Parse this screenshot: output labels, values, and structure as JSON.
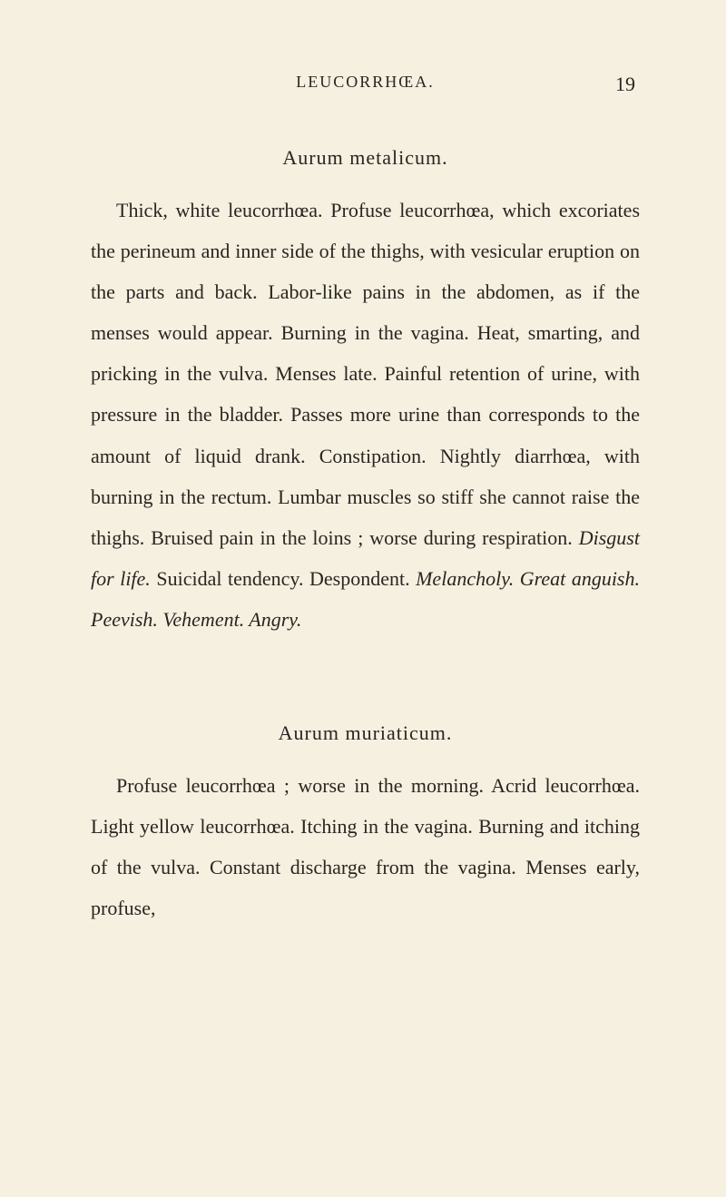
{
  "header": {
    "title": "LEUCORRHŒA.",
    "page_number": "19"
  },
  "section1": {
    "title": "Aurum metalicum.",
    "text_parts": {
      "p1": "Thick, white leucorrhœa. Profuse leucorrhœa, which excoriates the perineum and inner side of the thighs, with vesicular eruption on the parts and back. Labor-like pains in the abdomen, as if the menses would appear. Burning in the vagina. Heat, smarting, and pricking in the vulva. Menses late. Painful retention of urine, with pressure in the bladder. Passes more urine than corresponds to the amount of liquid drank. Constipation. Nightly diarrhœa, with burning in the rectum. Lumbar muscles so stiff she cannot raise the thighs. Bruised pain in the loins ; worse during respiration. ",
      "i1": "Disgust for life.",
      "p2": " Suicidal tendency. Despondent. ",
      "i2": "Melancholy. Great anguish. Peevish. Vehement. Angry."
    }
  },
  "section2": {
    "title": "Aurum muriaticum.",
    "text": "Profuse leucorrhœa ; worse in the morning. Acrid leucorrhœa. Light yellow leucorrhœa. Itching in the vagina. Burning and itching of the vulva. Constant discharge from the vagina. Menses early, profuse,"
  },
  "colors": {
    "background": "#f5f0e0",
    "text": "#2a2520"
  },
  "typography": {
    "body_fontsize": 22,
    "header_fontsize": 18,
    "line_height": 2.05
  }
}
